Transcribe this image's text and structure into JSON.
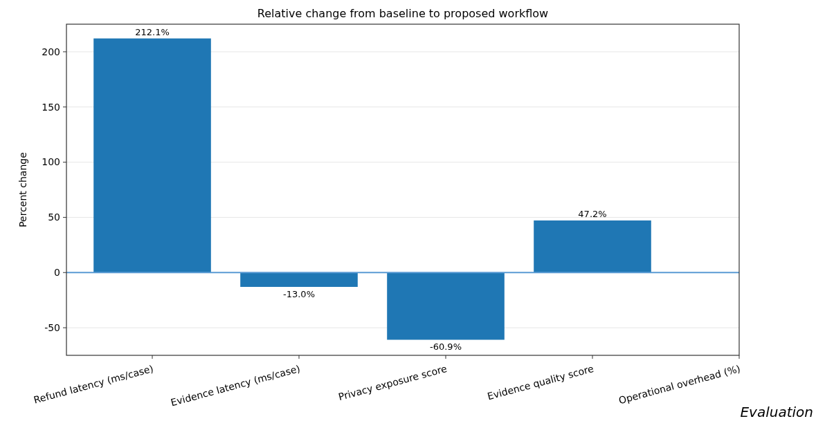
{
  "chart_data": {
    "type": "bar",
    "title": "Relative change from baseline to proposed workflow",
    "ylabel": "Percent change",
    "categories": [
      "Refund latency (ms/case)",
      "Evidence latency (ms/case)",
      "Privacy exposure score",
      "Evidence quality score",
      "Operational overhead (%)"
    ],
    "values": [
      212.1,
      -13.0,
      -60.9,
      47.2,
      null
    ],
    "value_labels": [
      "212.1%",
      "-13.0%",
      "-60.9%",
      "47.2%",
      null
    ],
    "color": "#1f77b4",
    "ylim": [
      -75,
      225
    ],
    "yticks": [
      -50,
      0,
      50,
      100,
      150,
      200
    ],
    "grid": "y",
    "ref_lines": [
      {
        "axis": "y",
        "value": 0,
        "color": "#5a9bd4"
      }
    ],
    "annotations": [
      "Evaluation"
    ]
  }
}
